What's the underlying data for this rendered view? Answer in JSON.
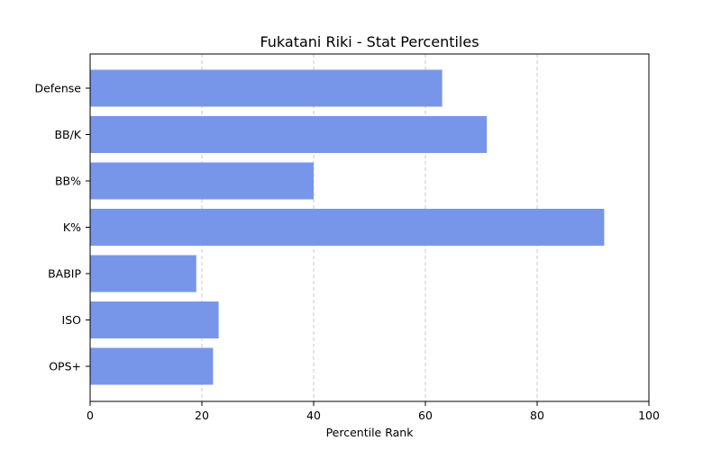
{
  "chart_data": {
    "type": "bar",
    "orientation": "horizontal",
    "title": "Fukatani Riki - Stat Percentiles",
    "xlabel": "Percentile Rank",
    "ylabel": "",
    "xlim": [
      0,
      100
    ],
    "xticks": [
      0,
      20,
      40,
      60,
      80,
      100
    ],
    "grid": "x-dashed",
    "bar_color": "#7896e9",
    "categories": [
      "OPS+",
      "ISO",
      "BABIP",
      "K%",
      "BB%",
      "BB/K",
      "Defense"
    ],
    "values": [
      22,
      23,
      19,
      92,
      40,
      71,
      63
    ]
  }
}
